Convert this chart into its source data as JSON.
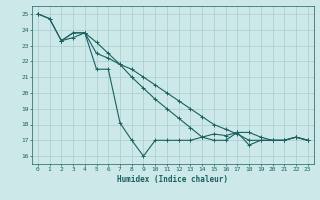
{
  "xlabel": "Humidex (Indice chaleur)",
  "bg_color": "#cce8e8",
  "grid_color": "#a8cccc",
  "line_color": "#1a6060",
  "xlim": [
    -0.5,
    23.5
  ],
  "ylim": [
    15.5,
    25.5
  ],
  "xticks": [
    0,
    1,
    2,
    3,
    4,
    5,
    6,
    7,
    8,
    9,
    10,
    11,
    12,
    13,
    14,
    15,
    16,
    17,
    18,
    19,
    20,
    21,
    22,
    23
  ],
  "yticks": [
    16,
    17,
    18,
    19,
    20,
    21,
    22,
    23,
    24,
    25
  ],
  "curve1_x": [
    0,
    1,
    2,
    3,
    4,
    5,
    6,
    7,
    8,
    9,
    10,
    11,
    12,
    13,
    14,
    15,
    16,
    17,
    18,
    19,
    20,
    21,
    22,
    23
  ],
  "curve1_y": [
    25.0,
    24.7,
    23.3,
    23.8,
    23.8,
    21.5,
    21.5,
    18.1,
    17.0,
    16.0,
    17.0,
    17.0,
    17.0,
    17.0,
    17.2,
    17.4,
    17.3,
    17.5,
    16.7,
    17.0,
    17.0,
    17.0,
    17.2,
    17.0
  ],
  "curve2_x": [
    0,
    1,
    2,
    3,
    4,
    5,
    6,
    7,
    8,
    9,
    10,
    11,
    12,
    13,
    14,
    15,
    16,
    17,
    18,
    19,
    20,
    21,
    22,
    23
  ],
  "curve2_y": [
    25.0,
    24.7,
    23.3,
    23.5,
    23.8,
    22.5,
    22.2,
    21.8,
    21.5,
    21.0,
    20.5,
    20.0,
    19.5,
    19.0,
    18.5,
    18.0,
    17.7,
    17.4,
    17.0,
    17.0,
    17.0,
    17.0,
    17.2,
    17.0
  ],
  "curve3_x": [
    2,
    3,
    4,
    5,
    6,
    7,
    8,
    9,
    10,
    11,
    12,
    13,
    14,
    15,
    16,
    17,
    18,
    19,
    20,
    21,
    22,
    23
  ],
  "curve3_y": [
    23.3,
    23.8,
    23.8,
    23.2,
    22.5,
    21.8,
    21.0,
    20.3,
    19.6,
    19.0,
    18.4,
    17.8,
    17.2,
    17.0,
    17.0,
    17.5,
    17.5,
    17.2,
    17.0,
    17.0,
    17.2,
    17.0
  ]
}
